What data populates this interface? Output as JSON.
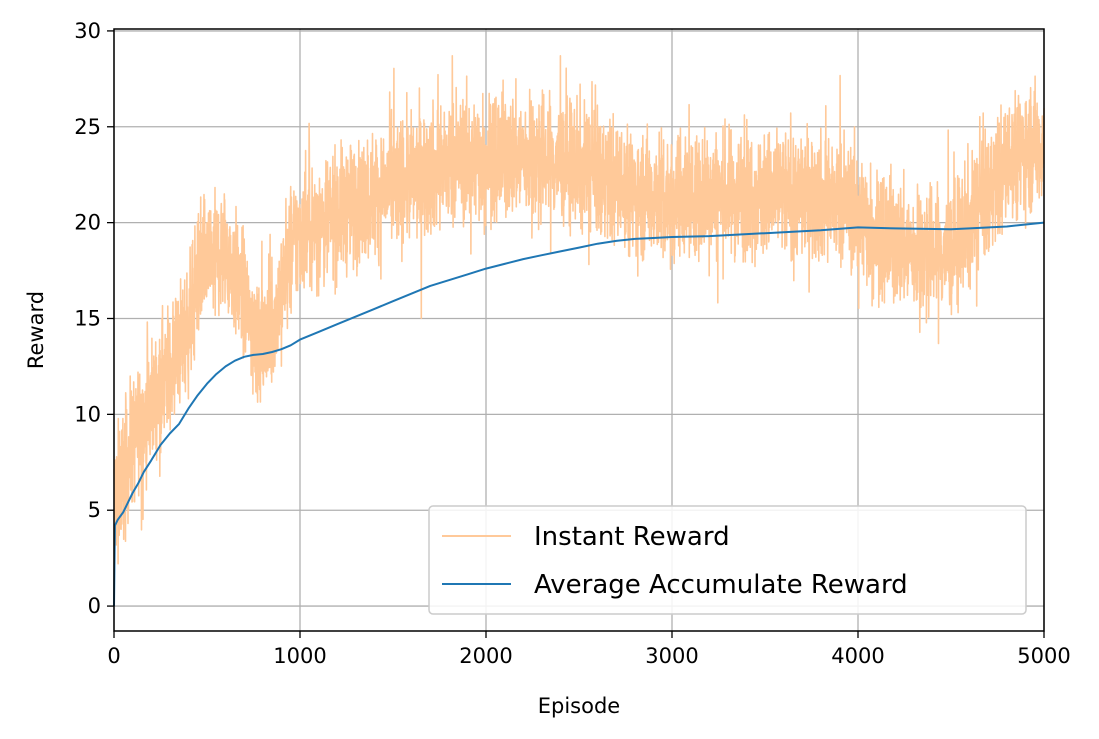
{
  "chart_data": {
    "type": "line",
    "title": "",
    "xlabel": "Episode",
    "ylabel": "Reward",
    "xlim": [
      0,
      5000
    ],
    "ylim": [
      -1.3,
      30.1
    ],
    "xticks": [
      0,
      1000,
      2000,
      3000,
      4000,
      5000
    ],
    "yticks": [
      0,
      5,
      10,
      15,
      20,
      25,
      30
    ],
    "grid": true,
    "legend_position": "bottom-right",
    "series": [
      {
        "name": "Instant Reward",
        "color": "#ffc999",
        "style": "noisy",
        "trend_x": [
          0,
          20,
          50,
          100,
          200,
          300,
          400,
          450,
          500,
          600,
          700,
          750,
          800,
          850,
          900,
          950,
          1000,
          1200,
          1500,
          1800,
          2000,
          2200,
          2500,
          2700,
          2800,
          3000,
          3500,
          3700,
          3900,
          4000,
          4100,
          4200,
          4300,
          4400,
          4500,
          4600,
          4700,
          4800,
          4900,
          5000
        ],
        "trend_y": [
          5.5,
          6.0,
          7.0,
          8.5,
          10.5,
          12.5,
          14.5,
          17.0,
          18.0,
          18.5,
          16.0,
          14.0,
          13.5,
          14.5,
          16.5,
          18.5,
          19.5,
          20.5,
          22.0,
          23.0,
          23.5,
          23.5,
          23.0,
          22.0,
          21.5,
          21.5,
          21.5,
          21.5,
          21.0,
          20.5,
          19.5,
          19.0,
          18.5,
          18.5,
          18.5,
          20.0,
          21.5,
          23.0,
          24.0,
          24.0
        ],
        "noise_amplitude": 1.6,
        "min": 0.9,
        "max": 28.7
      },
      {
        "name": "Average Accumulate Reward",
        "color": "#1f77b4",
        "x": [
          0,
          5,
          20,
          50,
          80,
          100,
          130,
          160,
          200,
          250,
          300,
          350,
          400,
          450,
          500,
          550,
          600,
          650,
          700,
          750,
          800,
          850,
          900,
          950,
          1000,
          1100,
          1200,
          1300,
          1400,
          1500,
          1600,
          1700,
          1800,
          1900,
          2000,
          2100,
          2200,
          2300,
          2400,
          2500,
          2600,
          2700,
          2800,
          2900,
          3000,
          3200,
          3500,
          3800,
          4000,
          4200,
          4500,
          4600,
          4800,
          5000
        ],
        "y": [
          0,
          4.2,
          4.5,
          4.9,
          5.5,
          5.9,
          6.4,
          7.0,
          7.6,
          8.4,
          9.0,
          9.5,
          10.3,
          11.0,
          11.6,
          12.1,
          12.5,
          12.8,
          13.0,
          13.1,
          13.15,
          13.25,
          13.4,
          13.6,
          13.9,
          14.3,
          14.7,
          15.1,
          15.5,
          15.9,
          16.3,
          16.7,
          17.0,
          17.3,
          17.6,
          17.85,
          18.1,
          18.3,
          18.5,
          18.7,
          18.9,
          19.05,
          19.15,
          19.2,
          19.25,
          19.3,
          19.45,
          19.6,
          19.75,
          19.7,
          19.65,
          19.7,
          19.8,
          20.0
        ]
      }
    ]
  }
}
